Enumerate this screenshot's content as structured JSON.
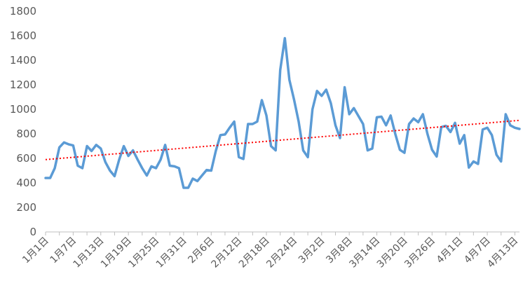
{
  "chart_data": {
    "type": "line",
    "title": "",
    "xlabel": "",
    "ylabel": "",
    "ylim": [
      0,
      1800
    ],
    "y_ticks": [
      0,
      200,
      400,
      600,
      800,
      1000,
      1200,
      1400,
      1600,
      1800
    ],
    "x_tick_labels": [
      "1月1日",
      "1月7日",
      "1月13日",
      "1月19日",
      "1月25日",
      "1月31日",
      "2月6日",
      "2月12日",
      "2月18日",
      "2月24日",
      "3月2日",
      "3月8日",
      "3月14日",
      "3月20日",
      "3月26日",
      "4月1日",
      "4月7日",
      "4月13日"
    ],
    "grid": false,
    "legend": "none",
    "series": [
      {
        "color": "#5b9bd5",
        "values": [
          440,
          440,
          520,
          690,
          730,
          715,
          705,
          540,
          520,
          700,
          660,
          710,
          680,
          570,
          500,
          455,
          590,
          700,
          620,
          665,
          590,
          520,
          460,
          535,
          520,
          590,
          710,
          540,
          535,
          520,
          360,
          360,
          435,
          415,
          460,
          505,
          500,
          660,
          790,
          795,
          850,
          900,
          610,
          595,
          880,
          880,
          900,
          1075,
          950,
          700,
          665,
          1320,
          1580,
          1240,
          1080,
          900,
          665,
          610,
          1000,
          1150,
          1110,
          1160,
          1050,
          870,
          765,
          1180,
          960,
          1010,
          945,
          880,
          665,
          680,
          935,
          940,
          870,
          950,
          800,
          670,
          645,
          880,
          925,
          895,
          960,
          800,
          670,
          615,
          855,
          865,
          815,
          890,
          720,
          790,
          525,
          575,
          555,
          835,
          850,
          790,
          630,
          575,
          960,
          870,
          850,
          840
        ]
      },
      {
        "color": "#ff0000",
        "style": "dotted",
        "kind": "trendline",
        "values": [
          590,
          910
        ]
      }
    ]
  }
}
